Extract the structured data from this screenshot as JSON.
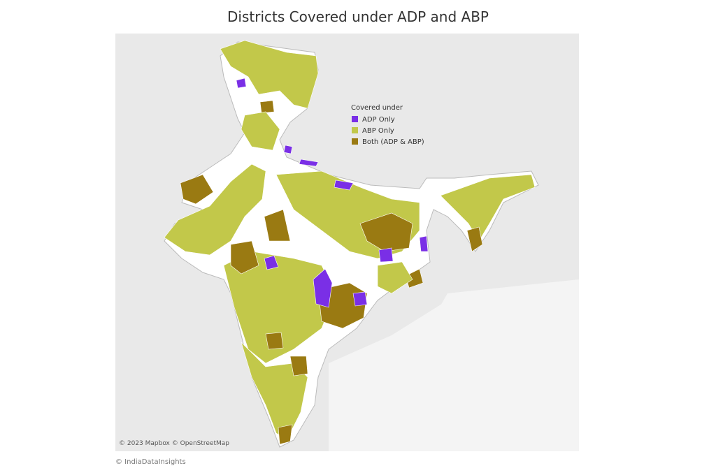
{
  "title": "Districts Covered under ADP and ABP",
  "legend": {
    "title": "Covered under",
    "items": [
      {
        "label": "ADP Only",
        "color": "#7a2fe6"
      },
      {
        "label": "ABP Only",
        "color": "#c2c84a"
      },
      {
        "label": "Both (ADP & ABP)",
        "color": "#9a7a12"
      }
    ]
  },
  "attribution": "© 2023 Mapbox © OpenStreetMap",
  "credit": "© IndiaDataInsights"
}
